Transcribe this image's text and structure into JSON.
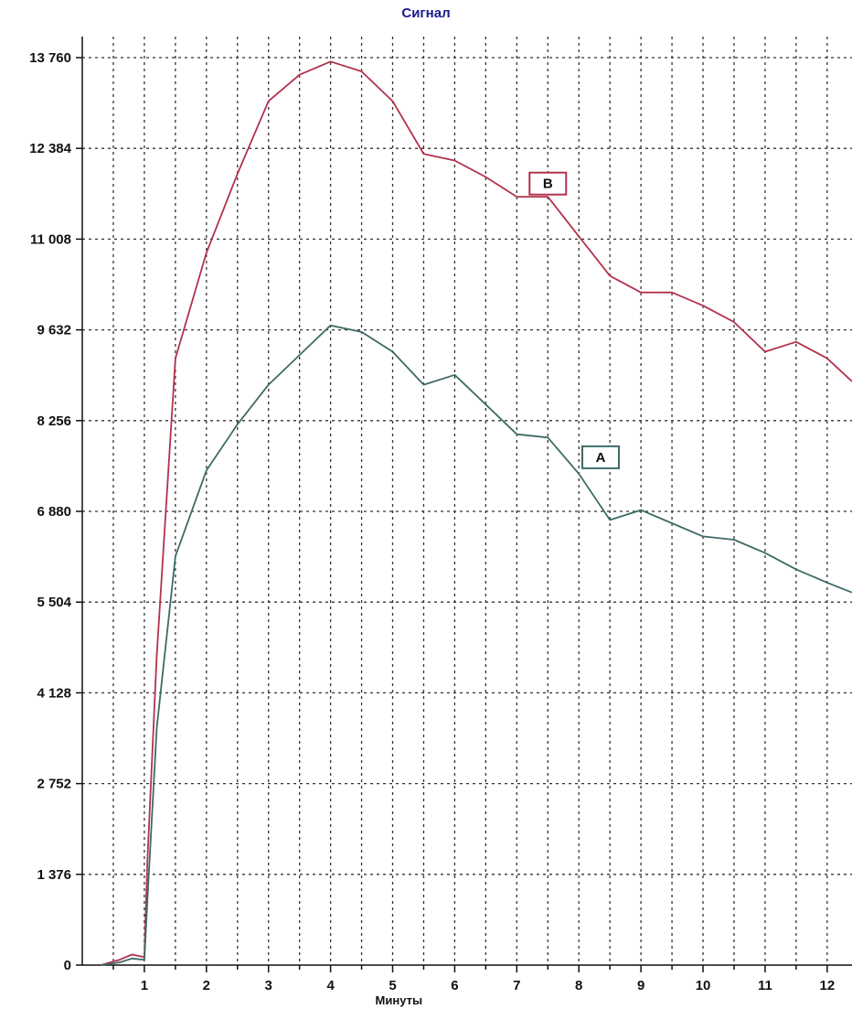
{
  "chart_data": {
    "type": "line",
    "title": "Сигнал",
    "xlabel": "Минуты",
    "ylabel": "",
    "xlim": [
      0.0,
      12.4
    ],
    "ylim": [
      0,
      13760
    ],
    "x_ticks": [
      1,
      2,
      3,
      4,
      5,
      6,
      7,
      8,
      9,
      10,
      11,
      12
    ],
    "y_ticks": [
      0,
      1376,
      2752,
      4128,
      5504,
      6880,
      8256,
      9632,
      11008,
      12384,
      13760
    ],
    "y_tick_labels": [
      "0",
      "1 376",
      "2 752",
      "4 128",
      "5 504",
      "6 880",
      "8 256",
      "9 632",
      "11 008",
      "12 384",
      "13 760"
    ],
    "grid": true,
    "series": [
      {
        "name": "B",
        "color": "#b2324b",
        "label_at": [
          7.5,
          11850
        ],
        "points": [
          [
            0.3,
            0
          ],
          [
            0.6,
            80
          ],
          [
            0.8,
            160
          ],
          [
            1.0,
            120
          ],
          [
            1.05,
            1600
          ],
          [
            1.2,
            4700
          ],
          [
            1.5,
            9200
          ],
          [
            2.0,
            10800
          ],
          [
            2.5,
            12000
          ],
          [
            3.0,
            13100
          ],
          [
            3.5,
            13500
          ],
          [
            4.0,
            13700
          ],
          [
            4.5,
            13550
          ],
          [
            5.0,
            13100
          ],
          [
            5.5,
            12300
          ],
          [
            6.0,
            12200
          ],
          [
            6.5,
            11950
          ],
          [
            7.0,
            11650
          ],
          [
            7.5,
            11650
          ],
          [
            8.0,
            11050
          ],
          [
            8.5,
            10450
          ],
          [
            9.0,
            10200
          ],
          [
            9.5,
            10200
          ],
          [
            10.0,
            10000
          ],
          [
            10.5,
            9750
          ],
          [
            11.0,
            9300
          ],
          [
            11.5,
            9450
          ],
          [
            12.0,
            9200
          ],
          [
            12.4,
            8850
          ]
        ]
      },
      {
        "name": "A",
        "color": "#3d6b66",
        "label_at": [
          8.35,
          7700
        ],
        "points": [
          [
            0.3,
            0
          ],
          [
            0.6,
            40
          ],
          [
            0.8,
            100
          ],
          [
            1.0,
            80
          ],
          [
            1.05,
            1000
          ],
          [
            1.2,
            3600
          ],
          [
            1.5,
            6200
          ],
          [
            2.0,
            7500
          ],
          [
            2.5,
            8200
          ],
          [
            3.0,
            8800
          ],
          [
            3.5,
            9250
          ],
          [
            4.0,
            9700
          ],
          [
            4.5,
            9600
          ],
          [
            5.0,
            9300
          ],
          [
            5.5,
            8800
          ],
          [
            6.0,
            8950
          ],
          [
            6.5,
            8500
          ],
          [
            7.0,
            8050
          ],
          [
            7.5,
            8000
          ],
          [
            8.0,
            7450
          ],
          [
            8.5,
            6750
          ],
          [
            9.0,
            6900
          ],
          [
            9.5,
            6700
          ],
          [
            10.0,
            6500
          ],
          [
            10.5,
            6450
          ],
          [
            11.0,
            6250
          ],
          [
            11.5,
            6000
          ],
          [
            12.0,
            5800
          ],
          [
            12.4,
            5650
          ]
        ]
      }
    ]
  }
}
